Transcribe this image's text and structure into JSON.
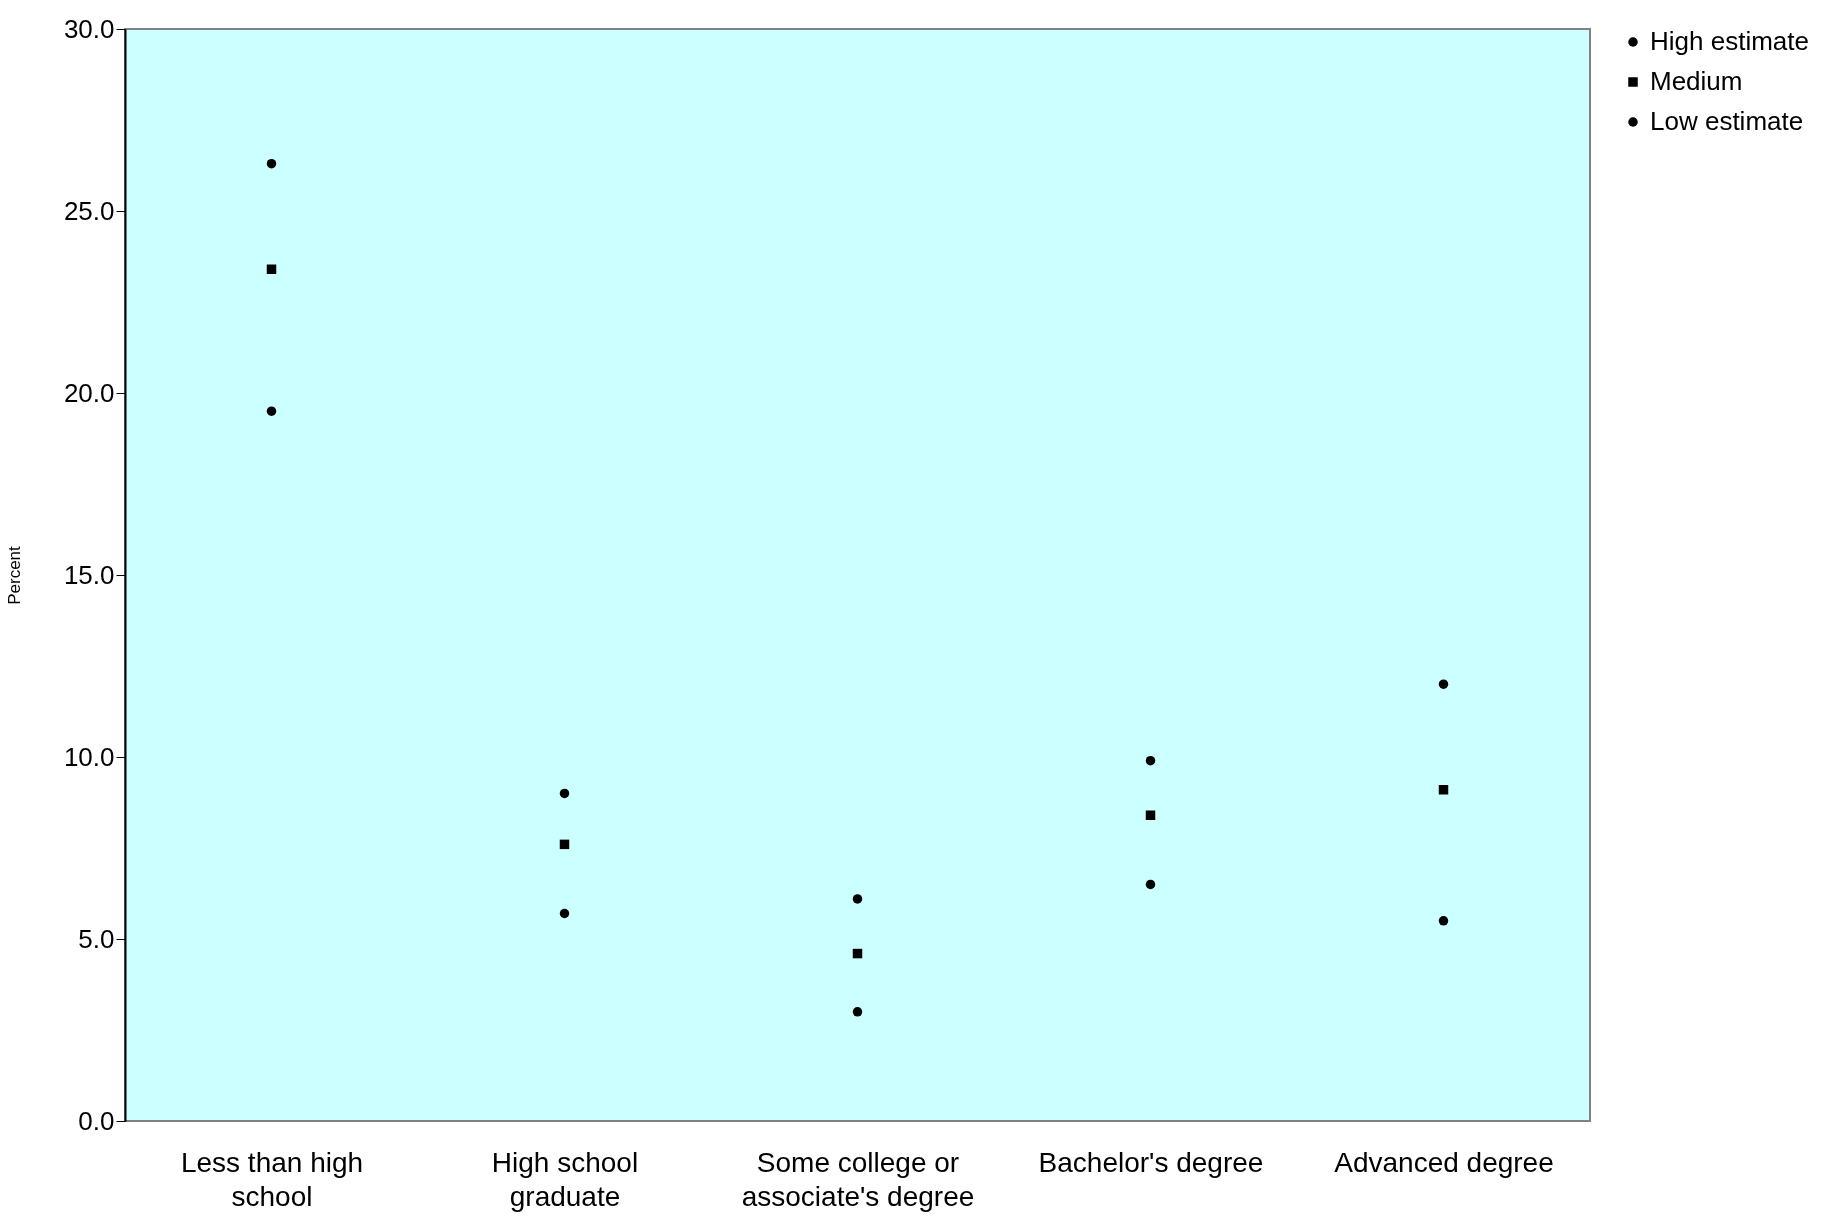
{
  "chart_data": {
    "type": "scatter",
    "ylabel": "Percent",
    "categories": [
      "Less than high school",
      "High school graduate",
      "Some college or associate's degree",
      "Bachelor's degree",
      "Advanced degree"
    ],
    "series": [
      {
        "name": "High estimate",
        "color": "#000000",
        "marker": "circle",
        "values": [
          26.3,
          9.0,
          6.1,
          9.9,
          12.0
        ]
      },
      {
        "name": "Medium",
        "color": "#000000",
        "marker": "square",
        "values": [
          23.4,
          7.6,
          4.6,
          8.4,
          9.1
        ]
      },
      {
        "name": "Low estimate",
        "color": "#000000",
        "marker": "circle",
        "values": [
          19.5,
          5.7,
          3.0,
          6.5,
          5.5
        ]
      }
    ],
    "ylim": [
      0,
      30
    ],
    "yticks": [
      {
        "value": 0,
        "label": "0.0"
      },
      {
        "value": 5,
        "label": "5.0"
      },
      {
        "value": 10,
        "label": "10.0"
      },
      {
        "value": 15,
        "label": "15.0"
      },
      {
        "value": 20,
        "label": "20.0"
      },
      {
        "value": 25,
        "label": "25.0"
      },
      {
        "value": 30,
        "label": "30.0"
      }
    ],
    "grid": false,
    "legend": "right"
  }
}
